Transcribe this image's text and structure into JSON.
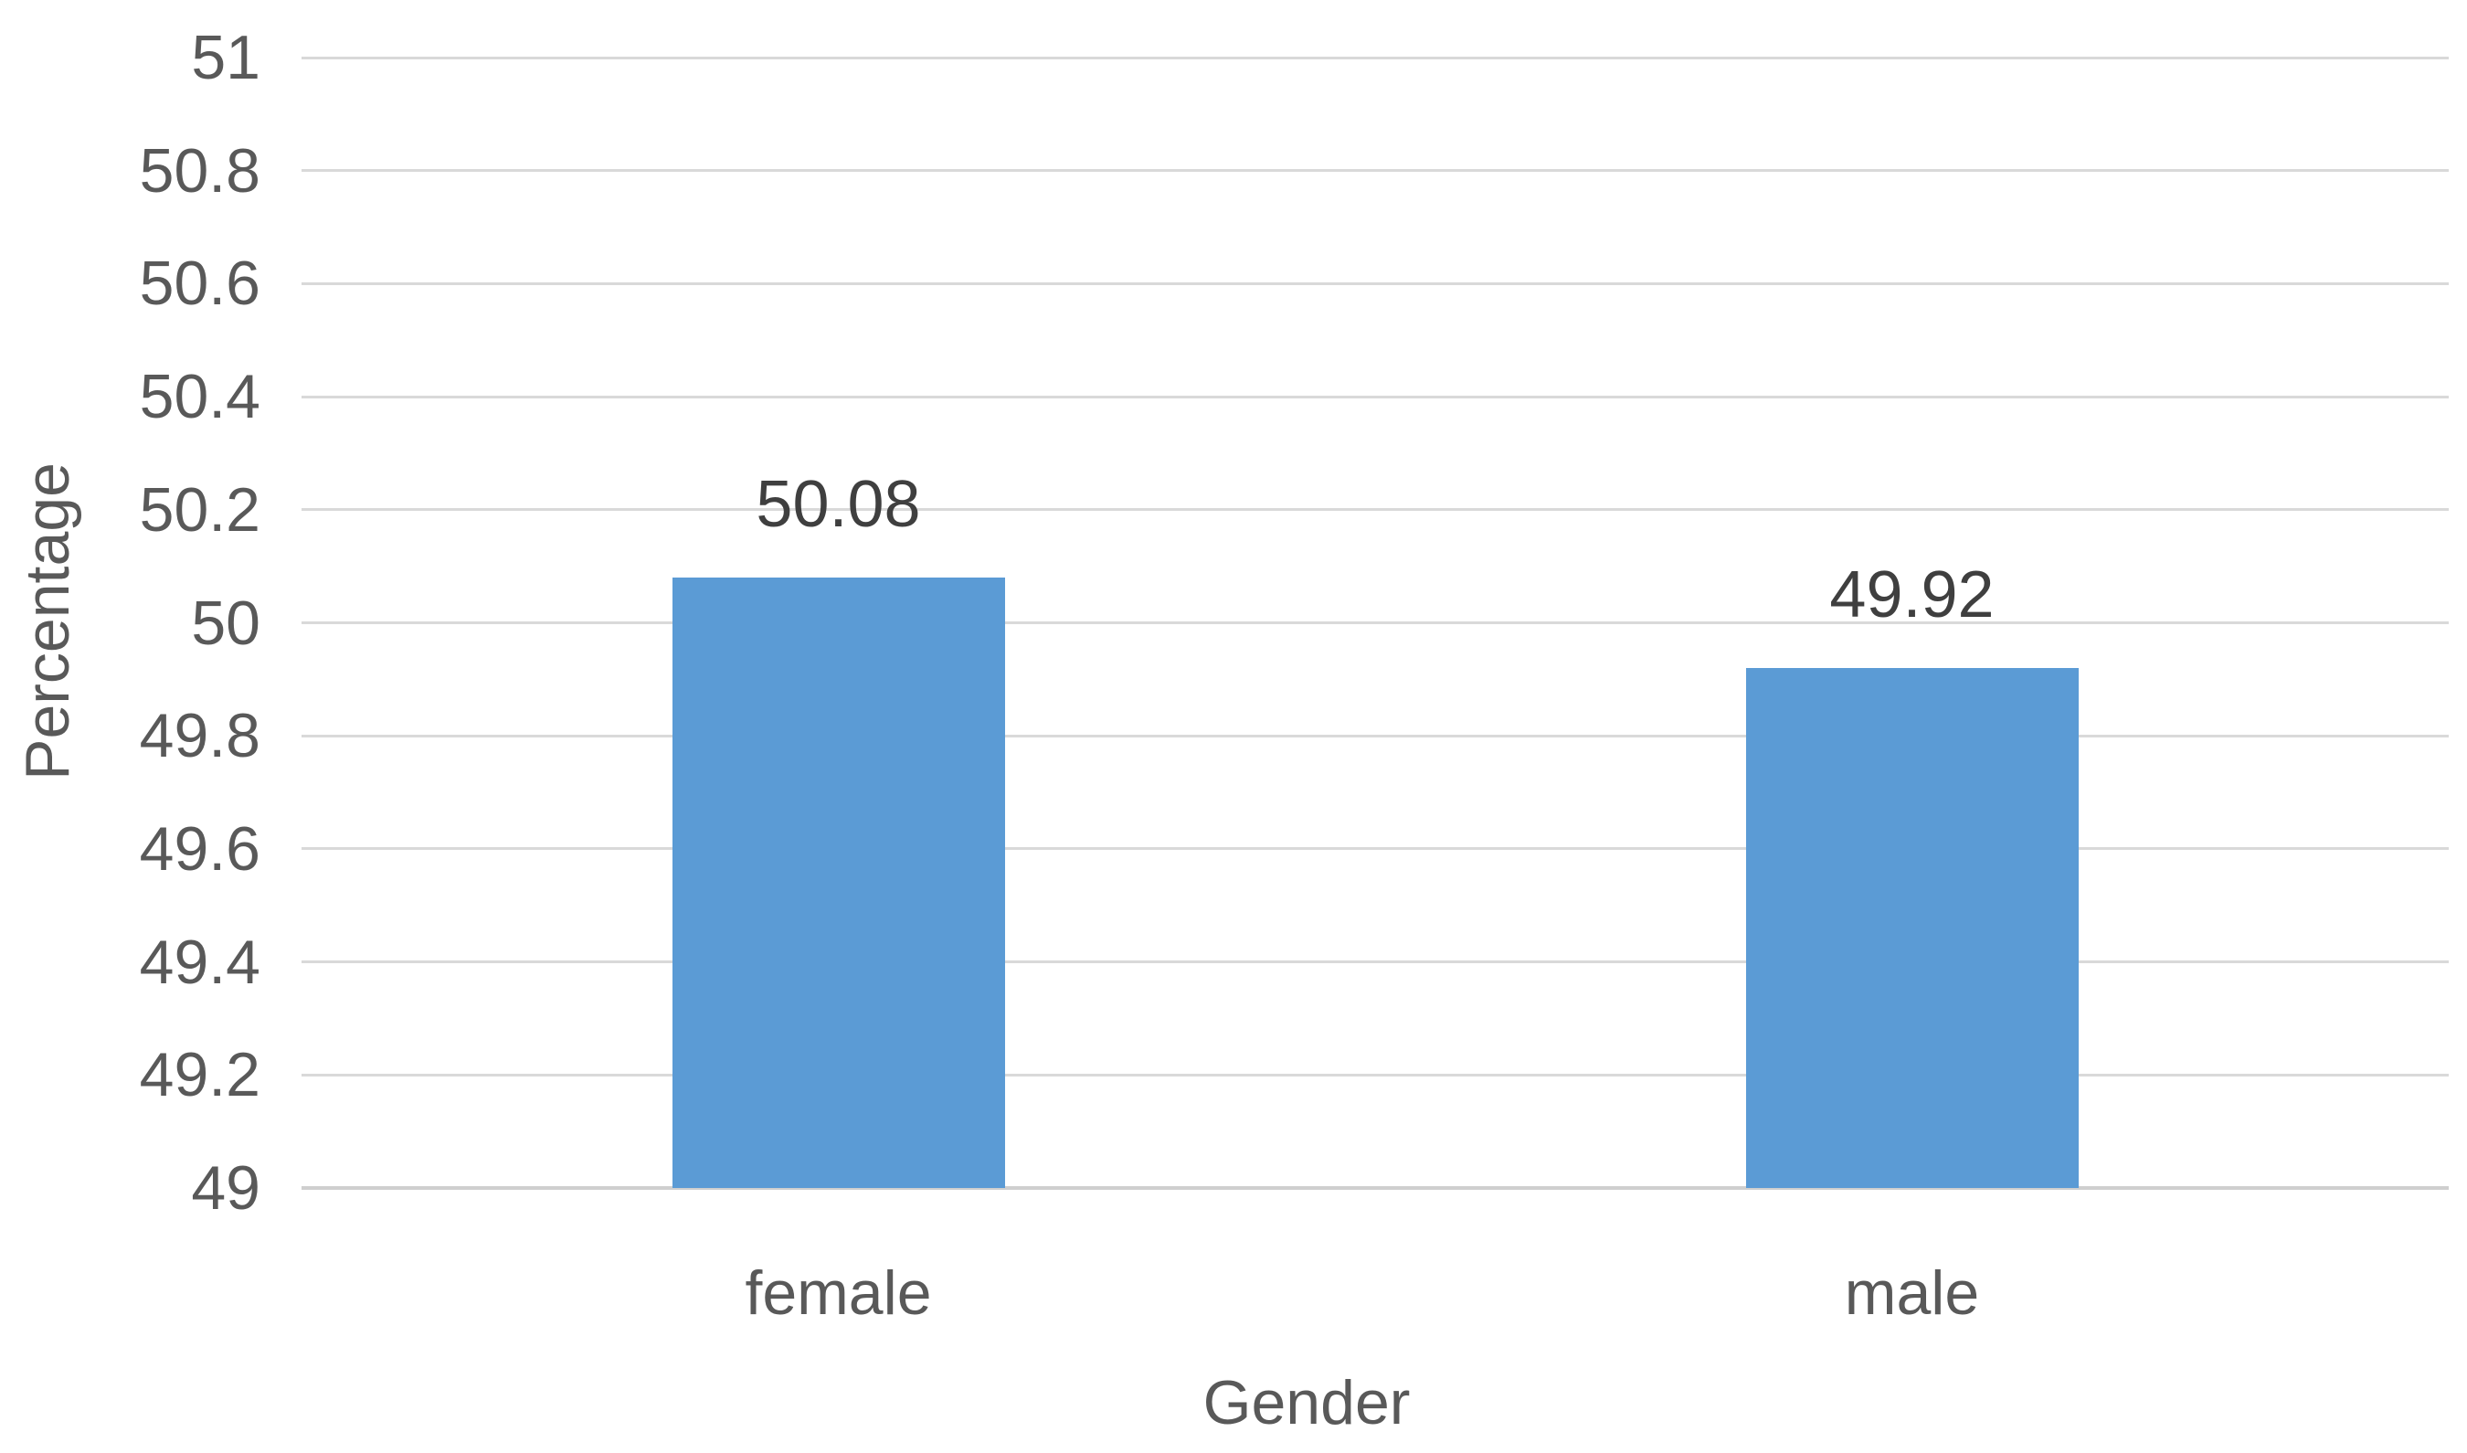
{
  "chart_data": {
    "type": "bar",
    "categories": [
      "female",
      "male"
    ],
    "values": [
      50.08,
      49.92
    ],
    "data_labels": [
      "50.08",
      "49.92"
    ],
    "title": "",
    "xlabel": "Gender",
    "ylabel": "Percentage",
    "ylim": [
      49,
      51
    ],
    "ytick_step": 0.2,
    "ytick_labels": [
      "51",
      "50.8",
      "50.6",
      "50.4",
      "50.2",
      "50",
      "49.8",
      "49.6",
      "49.4",
      "49.2",
      "49"
    ],
    "grid": true,
    "legend": "none",
    "colors": {
      "bar": "#5B9BD5",
      "gridline": "#D9D9D9",
      "axis_line": "#CFCFCF",
      "tick_label": "#595959",
      "axis_title": "#595959",
      "data_label": "#3F3F3F",
      "background": "#FFFFFF"
    }
  }
}
